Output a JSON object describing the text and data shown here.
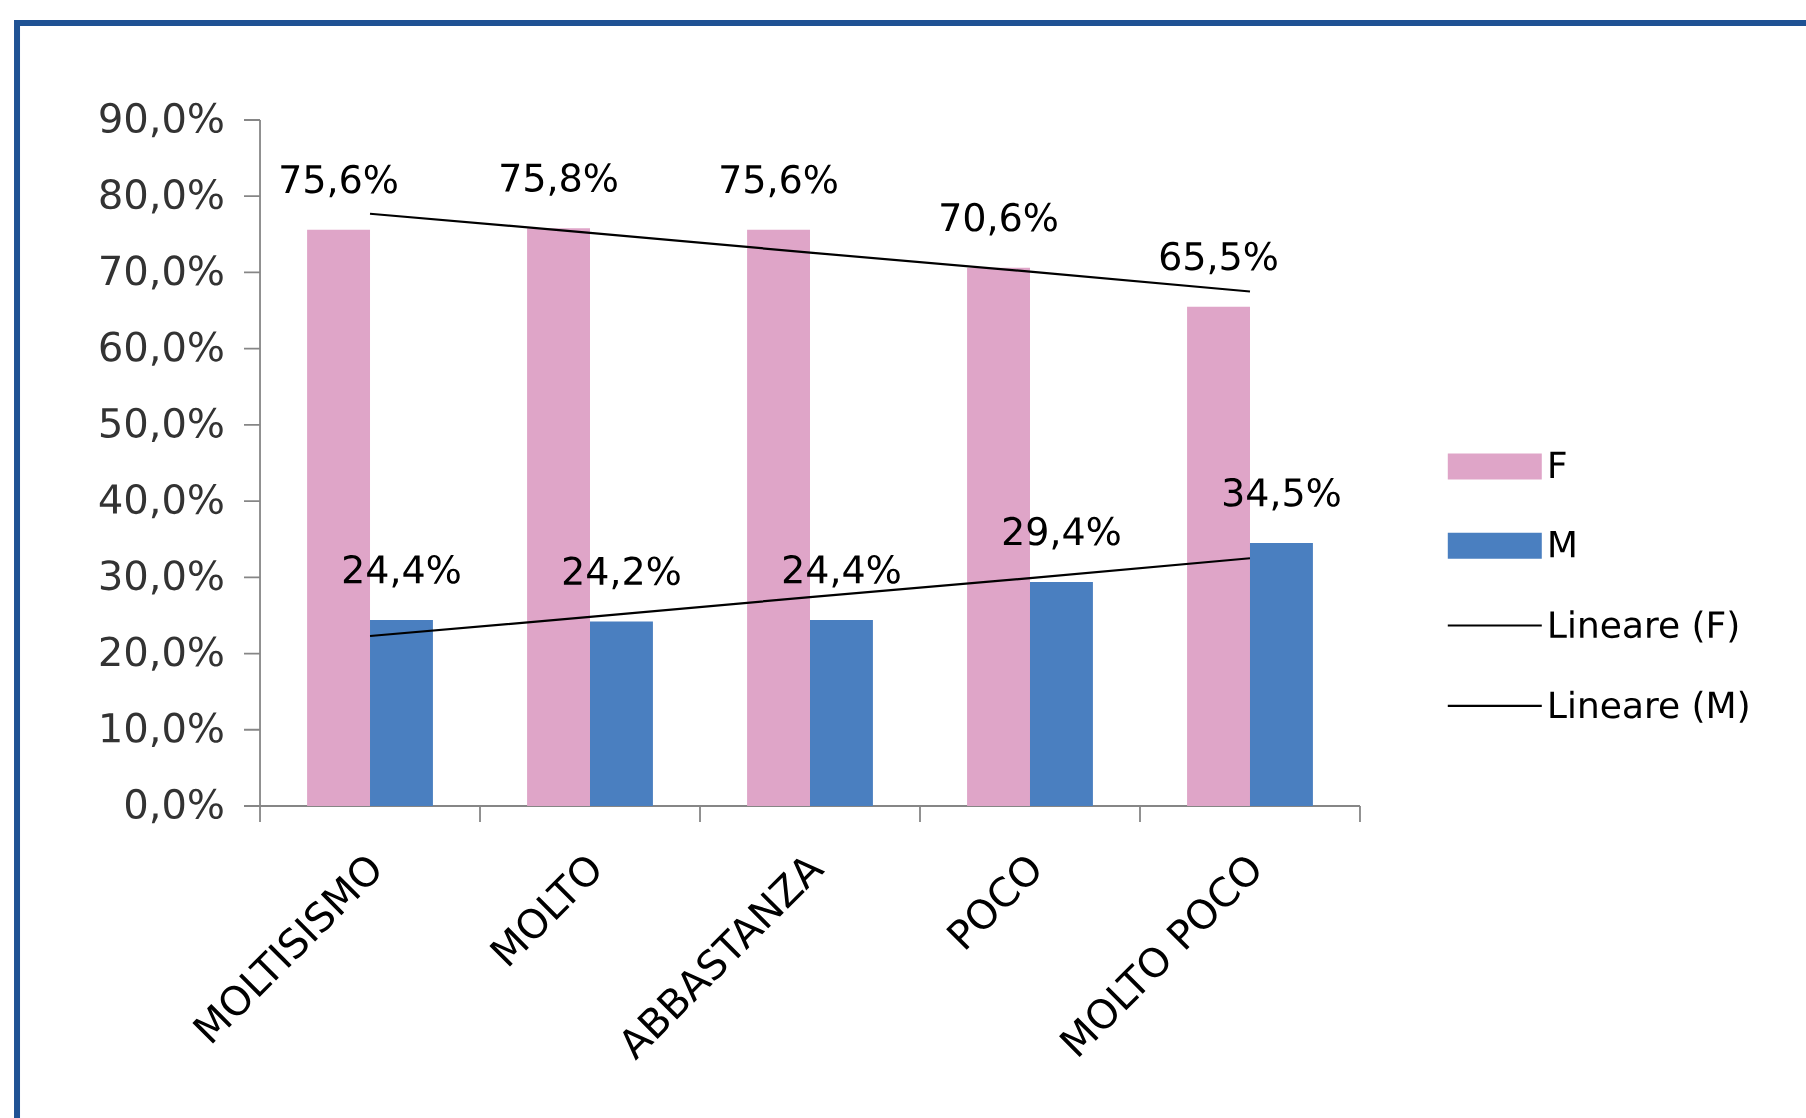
{
  "chart_data": {
    "type": "bar",
    "categories": [
      "MOLTISISMO",
      "MOLTO",
      "ABBASTANZA",
      "POCO",
      "MOLTO POCO"
    ],
    "series": [
      {
        "name": "F",
        "color": "#dfa5c8",
        "values": [
          75.6,
          75.8,
          75.6,
          70.6,
          65.5
        ],
        "value_labels": [
          "75,6%",
          "75,8%",
          "75,6%",
          "70,6%",
          "65,5%"
        ]
      },
      {
        "name": "M",
        "color": "#4a7fc0",
        "values": [
          24.4,
          24.2,
          24.4,
          29.4,
          34.5
        ],
        "value_labels": [
          "24,4%",
          "24,2%",
          "24,4%",
          "29,4%",
          "34,5%"
        ]
      },
      {
        "name": "Lineare (F)",
        "type": "line",
        "color": "#000000",
        "marker": "none",
        "line_style": "solid",
        "values": [
          77.7,
          75.2,
          72.6,
          70.1,
          67.5
        ]
      },
      {
        "name": "Lineare (M)",
        "type": "line",
        "color": "#000000",
        "marker": "none",
        "line_style": "solid",
        "values": [
          22.3,
          24.8,
          27.4,
          29.9,
          32.5
        ]
      }
    ],
    "ylim": [
      0,
      90
    ],
    "yticks": [
      {
        "value": 0,
        "label": "0,0%"
      },
      {
        "value": 10,
        "label": "10,0%"
      },
      {
        "value": 20,
        "label": "20,0%"
      },
      {
        "value": 30,
        "label": "30,0%"
      },
      {
        "value": 40,
        "label": "40,0%"
      },
      {
        "value": 50,
        "label": "50,0%"
      },
      {
        "value": 60,
        "label": "60,0%"
      },
      {
        "value": 70,
        "label": "70,0%"
      },
      {
        "value": 80,
        "label": "80,0%"
      },
      {
        "value": 90,
        "label": "90,0%"
      }
    ],
    "legend": "right"
  }
}
